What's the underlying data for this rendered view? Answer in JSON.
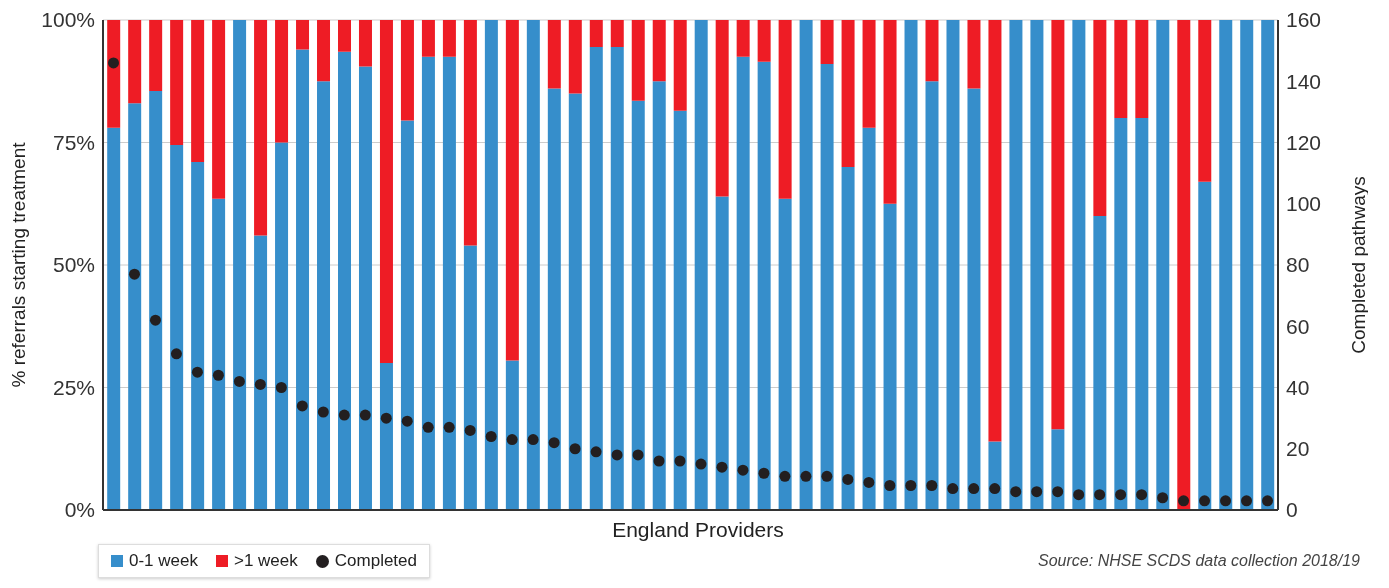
{
  "chart_data": {
    "type": "bar",
    "stacked": true,
    "xlabel": "England Providers",
    "ylabel": "% referrals starting treatment",
    "y2label": "Completed pathways",
    "categories": [
      null,
      null,
      null,
      null,
      null,
      null,
      null,
      null,
      null,
      null,
      null,
      null,
      null,
      null,
      null,
      null,
      null,
      null,
      null,
      null,
      null,
      null,
      null,
      null,
      null,
      null,
      null,
      null,
      null,
      null,
      null,
      null,
      null,
      null,
      null,
      null,
      null,
      null,
      null,
      null,
      null,
      null,
      null,
      null,
      null,
      null,
      null,
      null,
      null,
      null,
      null,
      null,
      null,
      null,
      null,
      null
    ],
    "series": [
      {
        "name": "0-1 week",
        "color": "#368ecb",
        "values": [
          78,
          83,
          85.5,
          74.5,
          71,
          63.5,
          100,
          56,
          75,
          94,
          87.5,
          93.5,
          90.5,
          30,
          79.5,
          92.5,
          92.5,
          54,
          100,
          30.5,
          100,
          86,
          85,
          94.5,
          94.5,
          83.5,
          87.5,
          81.5,
          100,
          64,
          92.5,
          91.5,
          63.5,
          100,
          91,
          70,
          78,
          62.5,
          100,
          87.5,
          100,
          86,
          14,
          100,
          100,
          16.5,
          100,
          60,
          80,
          80,
          100,
          0,
          67,
          100,
          100,
          100
        ]
      },
      {
        "name": ">1 week",
        "color": "#ee1c25",
        "values": [
          22,
          17,
          14.5,
          25.5,
          29,
          36.5,
          0,
          44,
          25,
          6,
          12.5,
          6.5,
          9.5,
          70,
          20.5,
          7.5,
          7.5,
          46,
          0,
          69.5,
          0,
          14,
          15,
          5.5,
          5.5,
          16.5,
          12.5,
          18.5,
          0,
          36,
          7.5,
          8.5,
          36.5,
          0,
          9,
          30,
          22,
          37.5,
          0,
          12.5,
          0,
          14,
          86,
          0,
          0,
          83.5,
          0,
          40,
          20,
          20,
          0,
          100,
          33,
          0,
          0,
          0
        ]
      },
      {
        "name": "Completed",
        "type": "scatter",
        "axis": "y2",
        "marker": "circle",
        "color": "#231f20",
        "values": [
          146,
          77,
          62,
          51,
          45,
          44,
          42,
          41,
          40,
          34,
          32,
          31,
          31,
          30,
          29,
          27,
          27,
          26,
          24,
          23,
          23,
          22,
          20,
          19,
          18,
          18,
          16,
          16,
          15,
          14,
          13,
          12,
          11,
          11,
          11,
          10,
          9,
          8,
          8,
          8,
          7,
          7,
          7,
          6,
          6,
          6,
          5,
          5,
          5,
          5,
          4,
          3,
          3,
          3,
          3,
          3
        ]
      }
    ],
    "ylim": [
      0,
      100
    ],
    "yticks": [
      {
        "value": 0,
        "label": "0%"
      },
      {
        "value": 25,
        "label": "25%"
      },
      {
        "value": 50,
        "label": "50%"
      },
      {
        "value": 75,
        "label": "75%"
      },
      {
        "value": 100,
        "label": "100%"
      }
    ],
    "y2lim": [
      0,
      160
    ],
    "y2ticks": [
      0,
      20,
      40,
      60,
      80,
      100,
      120,
      140,
      160
    ],
    "grid": "y",
    "legend": "bottom left",
    "annotations": [
      "Source: NHSE SCDS data collection 2018/19"
    ]
  }
}
